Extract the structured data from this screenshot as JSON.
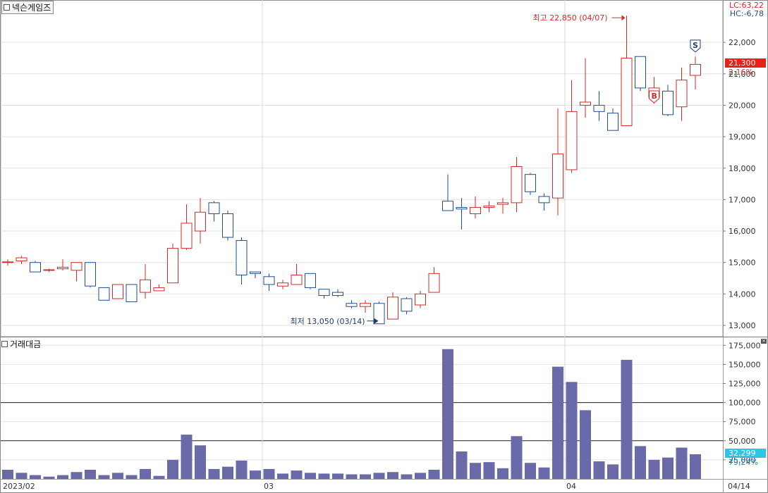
{
  "stock_name": "넥슨게임즈",
  "indicator_name": "거래대금",
  "lc_label": "LC:63,22",
  "hc_label": "HC:-6,78",
  "current_price_label": "21,300",
  "current_change_label": "2,16%",
  "current_volume_label": "32,299",
  "volume_pct_label": "79,24%",
  "high_annotation": "최고 22,850 (04/07)",
  "low_annotation": "최저 13,050 (03/14)",
  "signal_buy": "B",
  "signal_sell": "S",
  "colors": {
    "up": "#d42a2a",
    "down": "#1f4f8f",
    "volume_bar": "#6a6aa8",
    "current_price_bg": "#e8201a",
    "current_volume_bg": "#2ec4e8",
    "grid": "#e2e2e2"
  },
  "chart_data": [
    {
      "type": "candlestick",
      "y_ticks": [
        "13,000",
        "14,000",
        "15,000",
        "16,000",
        "17,000",
        "18,000",
        "19,000",
        "20,000",
        "21,000",
        "22,000"
      ],
      "ylim": [
        12550,
        23300
      ],
      "x_labels": [
        {
          "label": "2023/02",
          "index": 0
        },
        {
          "label": "03",
          "index": 19
        },
        {
          "label": "04",
          "index": 41
        },
        {
          "label": "04/14",
          "index": 50
        }
      ],
      "ohlc": [
        [
          15000,
          15100,
          14900,
          15020
        ],
        [
          15050,
          15200,
          14950,
          15150
        ],
        [
          15000,
          15050,
          14700,
          14700
        ],
        [
          14750,
          14800,
          14700,
          14770
        ],
        [
          14800,
          15100,
          14750,
          14850
        ],
        [
          14750,
          15000,
          14400,
          15000
        ],
        [
          15000,
          15000,
          14200,
          14250
        ],
        [
          14200,
          14200,
          13800,
          13800
        ],
        [
          13850,
          14300,
          13850,
          14300
        ],
        [
          14300,
          14300,
          13750,
          13750
        ],
        [
          14050,
          14950,
          13850,
          14450
        ],
        [
          14100,
          14300,
          14100,
          14200
        ],
        [
          14350,
          15600,
          14350,
          15450
        ],
        [
          15450,
          16850,
          15400,
          16250
        ],
        [
          16000,
          17050,
          15600,
          16600
        ],
        [
          16900,
          16950,
          16300,
          16550
        ],
        [
          16550,
          16650,
          15700,
          15800
        ],
        [
          15700,
          15800,
          14300,
          14600
        ],
        [
          14700,
          14700,
          14500,
          14650
        ],
        [
          14550,
          14650,
          14100,
          14300
        ],
        [
          14250,
          14450,
          14150,
          14350
        ],
        [
          14300,
          14950,
          14300,
          14600
        ],
        [
          14650,
          14650,
          14150,
          14200
        ],
        [
          14150,
          14150,
          13850,
          13950
        ],
        [
          14050,
          14150,
          13900,
          13950
        ],
        [
          13700,
          13800,
          13550,
          13600
        ],
        [
          13600,
          13800,
          13400,
          13700
        ],
        [
          13700,
          13750,
          13050,
          13050
        ],
        [
          13200,
          14050,
          13200,
          13900
        ],
        [
          13850,
          13900,
          13350,
          13450
        ],
        [
          13650,
          14100,
          13550,
          14000
        ],
        [
          14050,
          14850,
          14050,
          14650
        ],
        [
          16950,
          17800,
          16650,
          16650
        ],
        [
          16750,
          17050,
          16050,
          16700
        ],
        [
          16550,
          17100,
          16400,
          16750
        ],
        [
          16750,
          16950,
          16600,
          16800
        ],
        [
          16850,
          17050,
          16550,
          16900
        ],
        [
          16900,
          18350,
          16600,
          18050
        ],
        [
          17800,
          17850,
          17150,
          17250
        ],
        [
          17100,
          17200,
          16650,
          16900
        ],
        [
          17050,
          19900,
          16500,
          18450
        ],
        [
          17950,
          20800,
          17850,
          19800
        ],
        [
          20000,
          21500,
          19600,
          20100
        ],
        [
          20000,
          20450,
          19500,
          19800
        ],
        [
          19750,
          19900,
          19200,
          19200
        ],
        [
          19350,
          22850,
          19350,
          21500
        ],
        [
          21550,
          21550,
          20450,
          20550
        ],
        [
          20250,
          20900,
          20050,
          20550
        ],
        [
          20450,
          20650,
          19650,
          19700
        ],
        [
          19950,
          21200,
          19500,
          20800
        ],
        [
          20950,
          21550,
          20500,
          21300
        ]
      ]
    },
    {
      "type": "bar",
      "y_ticks": [
        "25,000",
        "50,000",
        "75,000",
        "100,000",
        "125,000",
        "150,000",
        "175,000"
      ],
      "ylim": [
        0,
        180000
      ],
      "reference_lines": [
        50000,
        100000
      ],
      "values": [
        12000,
        8000,
        5000,
        3000,
        5000,
        9000,
        12000,
        5000,
        8000,
        5000,
        13000,
        4000,
        25000,
        58000,
        44000,
        13000,
        16000,
        24000,
        11000,
        13000,
        7000,
        11000,
        8000,
        7000,
        7000,
        6000,
        6000,
        8000,
        9000,
        6000,
        8000,
        12000,
        170000,
        36000,
        21000,
        22000,
        14000,
        56000,
        21000,
        15000,
        147000,
        127000,
        90000,
        23000,
        19000,
        156000,
        43000,
        25000,
        28000,
        41000,
        32299
      ]
    }
  ]
}
